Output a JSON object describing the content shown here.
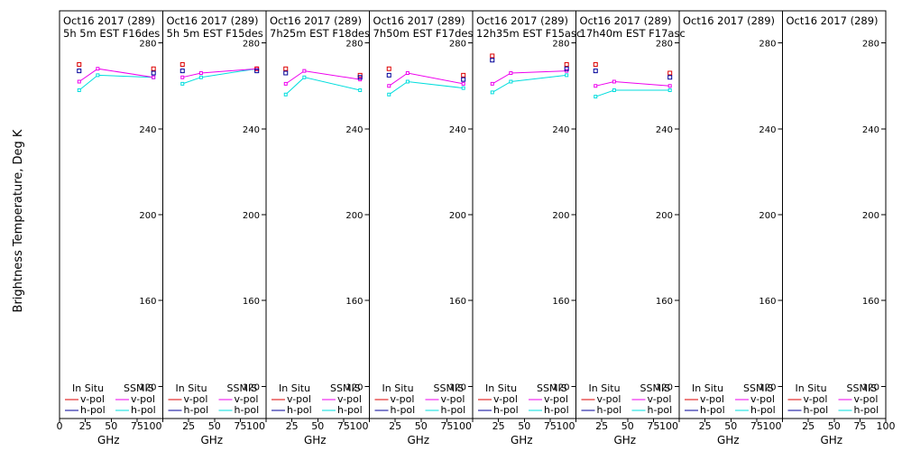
{
  "y_axis_label": "Brightness Temperature, Deg K",
  "x_axis_label": "GHz",
  "legend": {
    "in_situ": "In Situ",
    "ssmis": "SSMIS",
    "vpol": "v-pol",
    "hpol": "h-pol"
  },
  "colors": {
    "insitu_v": "#dd0000",
    "insitu_h": "#000099",
    "ssmis_v": "#ee00ee",
    "ssmis_h": "#00dddd"
  },
  "chart_data": {
    "type": "line",
    "xlim": [
      0,
      100
    ],
    "ylim": [
      105,
      295
    ],
    "x_ticks": [
      0,
      25,
      50,
      75,
      100
    ],
    "y_ticks": [
      120,
      160,
      200,
      240,
      280
    ],
    "panels": [
      {
        "title": "Oct16 2017 (289)",
        "subtitle": "5h 5m  EST F16des",
        "insitu_v": [
          {
            "x": 19,
            "y": 270
          },
          {
            "x": 91,
            "y": 268
          }
        ],
        "insitu_h": [
          {
            "x": 19,
            "y": 267
          },
          {
            "x": 91,
            "y": 266
          }
        ],
        "ssmis_v": [
          {
            "x": 19,
            "y": 262
          },
          {
            "x": 37,
            "y": 268
          },
          {
            "x": 91,
            "y": 264
          }
        ],
        "ssmis_h": [
          {
            "x": 19,
            "y": 258
          },
          {
            "x": 37,
            "y": 265
          },
          {
            "x": 91,
            "y": 264
          }
        ]
      },
      {
        "title": "Oct16 2017 (289)",
        "subtitle": "5h 5m  EST F15des",
        "insitu_v": [
          {
            "x": 19,
            "y": 270
          },
          {
            "x": 91,
            "y": 268
          }
        ],
        "insitu_h": [
          {
            "x": 19,
            "y": 267
          },
          {
            "x": 91,
            "y": 267
          }
        ],
        "ssmis_v": [
          {
            "x": 19,
            "y": 264
          },
          {
            "x": 37,
            "y": 266
          },
          {
            "x": 91,
            "y": 268
          }
        ],
        "ssmis_h": [
          {
            "x": 19,
            "y": 261
          },
          {
            "x": 37,
            "y": 264
          },
          {
            "x": 91,
            "y": 268
          }
        ]
      },
      {
        "title": "Oct16 2017 (289)",
        "subtitle": "7h25m  EST F18des",
        "insitu_v": [
          {
            "x": 19,
            "y": 268
          },
          {
            "x": 91,
            "y": 265
          }
        ],
        "insitu_h": [
          {
            "x": 19,
            "y": 266
          },
          {
            "x": 91,
            "y": 264
          }
        ],
        "ssmis_v": [
          {
            "x": 19,
            "y": 261
          },
          {
            "x": 37,
            "y": 267
          },
          {
            "x": 91,
            "y": 263
          }
        ],
        "ssmis_h": [
          {
            "x": 19,
            "y": 256
          },
          {
            "x": 37,
            "y": 264
          },
          {
            "x": 91,
            "y": 258
          }
        ]
      },
      {
        "title": "Oct16 2017 (289)",
        "subtitle": "7h50m  EST F17des",
        "insitu_v": [
          {
            "x": 19,
            "y": 268
          },
          {
            "x": 91,
            "y": 265
          }
        ],
        "insitu_h": [
          {
            "x": 19,
            "y": 265
          },
          {
            "x": 91,
            "y": 263
          }
        ],
        "ssmis_v": [
          {
            "x": 19,
            "y": 260
          },
          {
            "x": 37,
            "y": 266
          },
          {
            "x": 91,
            "y": 261
          }
        ],
        "ssmis_h": [
          {
            "x": 19,
            "y": 256
          },
          {
            "x": 37,
            "y": 262
          },
          {
            "x": 91,
            "y": 259
          }
        ]
      },
      {
        "title": "Oct16 2017 (289)",
        "subtitle": "12h35m  EST F15asc",
        "insitu_v": [
          {
            "x": 19,
            "y": 274
          },
          {
            "x": 91,
            "y": 270
          }
        ],
        "insitu_h": [
          {
            "x": 19,
            "y": 272
          },
          {
            "x": 91,
            "y": 268
          }
        ],
        "ssmis_v": [
          {
            "x": 19,
            "y": 261
          },
          {
            "x": 37,
            "y": 266
          },
          {
            "x": 91,
            "y": 267
          }
        ],
        "ssmis_h": [
          {
            "x": 19,
            "y": 257
          },
          {
            "x": 37,
            "y": 262
          },
          {
            "x": 91,
            "y": 265
          }
        ]
      },
      {
        "title": "Oct16 2017 (289)",
        "subtitle": "17h40m  EST F17asc",
        "insitu_v": [
          {
            "x": 19,
            "y": 270
          },
          {
            "x": 91,
            "y": 266
          }
        ],
        "insitu_h": [
          {
            "x": 19,
            "y": 267
          },
          {
            "x": 91,
            "y": 264
          }
        ],
        "ssmis_v": [
          {
            "x": 19,
            "y": 260
          },
          {
            "x": 37,
            "y": 262
          },
          {
            "x": 91,
            "y": 260
          }
        ],
        "ssmis_h": [
          {
            "x": 19,
            "y": 255
          },
          {
            "x": 37,
            "y": 258
          },
          {
            "x": 91,
            "y": 258
          }
        ]
      },
      {
        "title": "Oct16 2017 (289)",
        "subtitle": "",
        "insitu_v": [],
        "insitu_h": [],
        "ssmis_v": [],
        "ssmis_h": []
      },
      {
        "title": "Oct16 2017 (289)",
        "subtitle": "",
        "insitu_v": [],
        "insitu_h": [],
        "ssmis_v": [],
        "ssmis_h": []
      }
    ]
  }
}
